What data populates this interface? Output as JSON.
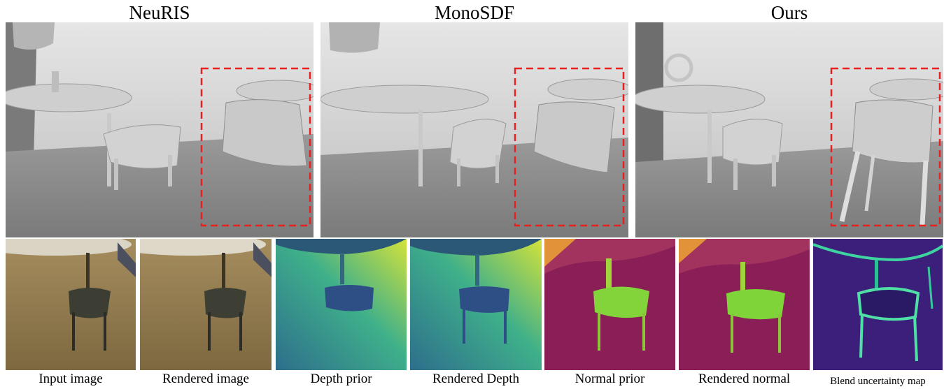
{
  "top_row": {
    "titles": [
      "NeuRIS",
      "MonoSDF",
      "Ours"
    ],
    "highlight_color": "#e8201f"
  },
  "bottom_row": {
    "captions": [
      "Input image",
      "Rendered image",
      "Depth prior",
      "Rendered Depth",
      "Normal prior",
      "Rendered normal",
      "Blend uncertainty map"
    ]
  },
  "colors": {
    "mesh_light": "#d9d9d9",
    "mesh_dark": "#8a8a8a",
    "rgb_floor": "#8c7a55",
    "depth_low": "#2a6d8e",
    "depth_high": "#c8e03a",
    "normal_bg": "#8a1e57",
    "normal_chair": "#7fd43a",
    "uncert_bg": "#3b1f7a",
    "uncert_edge": "#3fd3a0"
  }
}
